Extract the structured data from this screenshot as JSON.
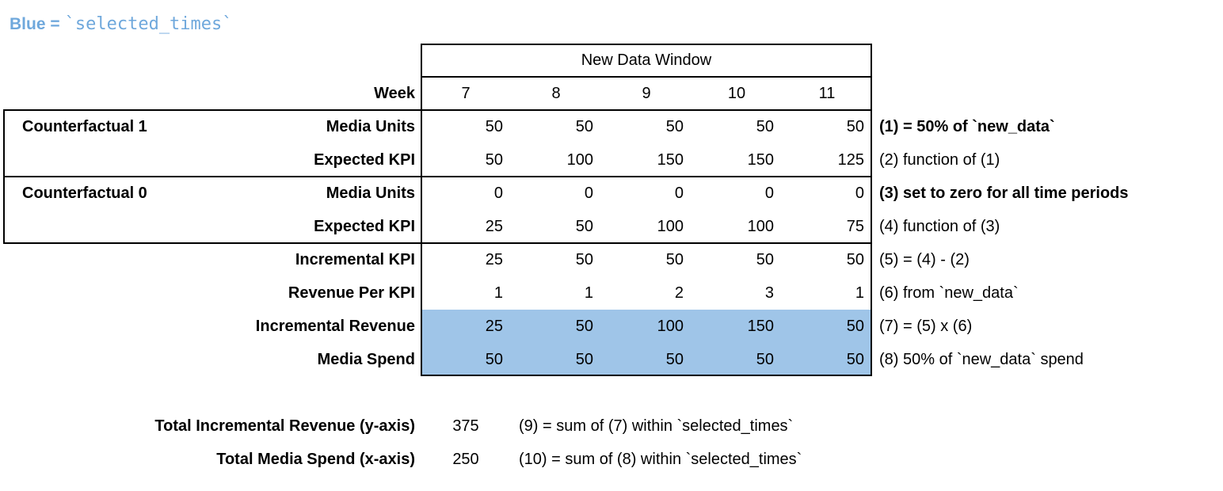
{
  "legend": {
    "prefix": "Blue =",
    "code": "`selected_times`"
  },
  "colors": {
    "highlight_fill": "#9fc5e8",
    "legend_text": "#6fa8dc",
    "border": "#000000"
  },
  "table": {
    "window_title": "New Data Window",
    "week_label": "Week",
    "weeks": [
      "7",
      "8",
      "9",
      "10",
      "11"
    ],
    "rows": [
      {
        "group": "Counterfactual 1",
        "label": "Media Units",
        "values": [
          "50",
          "50",
          "50",
          "50",
          "50"
        ],
        "note": "(1) = 50% of `new_data`",
        "note_bold": true,
        "highlight": false
      },
      {
        "group": "",
        "label": "Expected KPI",
        "values": [
          "50",
          "100",
          "150",
          "150",
          "125"
        ],
        "note": "(2) function of (1)",
        "note_bold": false,
        "highlight": false
      },
      {
        "group": "Counterfactual 0",
        "label": "Media Units",
        "values": [
          "0",
          "0",
          "0",
          "0",
          "0"
        ],
        "note": "(3) set to zero for all time periods",
        "note_bold": true,
        "highlight": false
      },
      {
        "group": "",
        "label": "Expected KPI",
        "values": [
          "25",
          "50",
          "100",
          "100",
          "75"
        ],
        "note": "(4) function of (3)",
        "note_bold": false,
        "highlight": false
      },
      {
        "group": "",
        "label": "Incremental KPI",
        "values": [
          "25",
          "50",
          "50",
          "50",
          "50"
        ],
        "note": "(5) = (4) - (2)",
        "note_bold": false,
        "highlight": false
      },
      {
        "group": "",
        "label": "Revenue Per KPI",
        "values": [
          "1",
          "1",
          "2",
          "3",
          "1"
        ],
        "note": "(6) from `new_data`",
        "note_bold": false,
        "highlight": false
      },
      {
        "group": "",
        "label": "Incremental Revenue",
        "values": [
          "25",
          "50",
          "100",
          "150",
          "50"
        ],
        "note": "(7) = (5) x (6)",
        "note_bold": false,
        "highlight": true
      },
      {
        "group": "",
        "label": "Media Spend",
        "values": [
          "50",
          "50",
          "50",
          "50",
          "50"
        ],
        "note": "(8) 50% of `new_data` spend",
        "note_bold": false,
        "highlight": true
      }
    ]
  },
  "summary": [
    {
      "label": "Total Incremental Revenue (y-axis)",
      "value": "375",
      "note": "(9) = sum of (7) within `selected_times`"
    },
    {
      "label": "Total Media Spend (x-axis)",
      "value": "250",
      "note": "(10) = sum of (8) within `selected_times`"
    }
  ]
}
